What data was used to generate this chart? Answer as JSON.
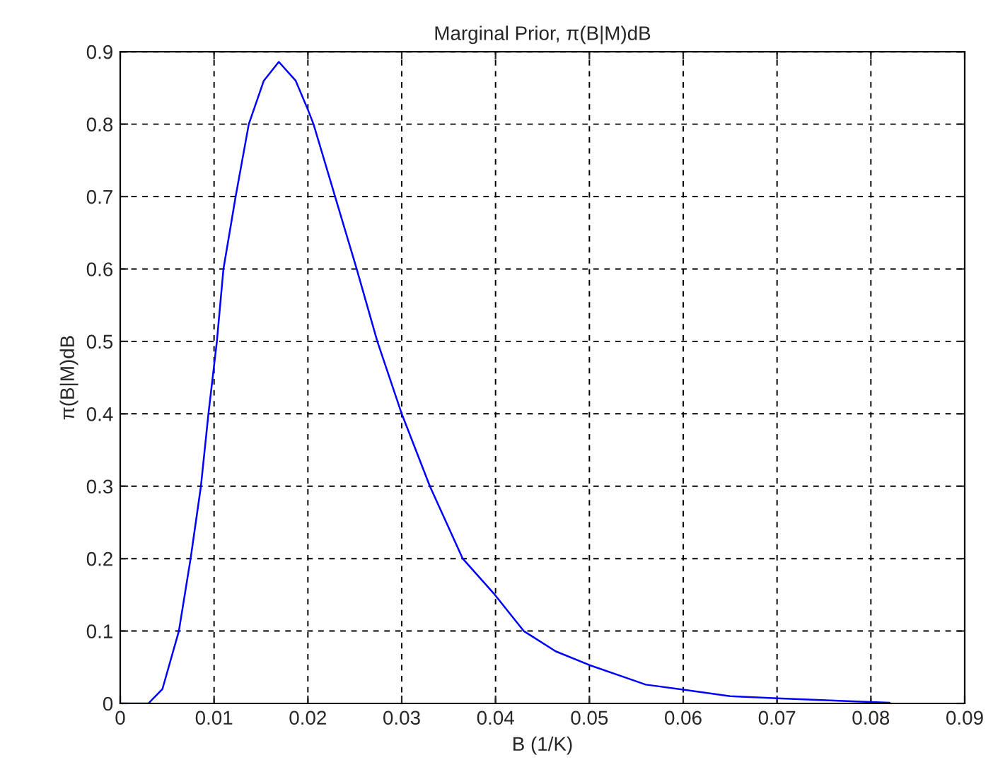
{
  "chart_data": {
    "type": "line",
    "title": "Marginal Prior, π(B|M)dB",
    "xlabel": "B (1/K)",
    "ylabel": "π(B|M)dB",
    "xlim": [
      0,
      0.09
    ],
    "xticks": [
      0,
      0.01,
      0.02,
      0.03,
      0.04,
      0.05,
      0.06,
      0.07,
      0.08,
      0.09
    ],
    "ylim": [
      0,
      0.9
    ],
    "yticks": [
      0,
      0.1,
      0.2,
      0.3,
      0.4,
      0.5,
      0.6,
      0.7,
      0.8,
      0.9
    ],
    "grid": true,
    "line_style": "solid",
    "marker": "none",
    "series": [
      {
        "color": "#0000ff",
        "x": [
          0,
          0.003,
          0.0045,
          0.00625,
          0.0075,
          0.0086,
          0.0094,
          0.0103,
          0.011,
          0.0123,
          0.0137,
          0.0153,
          0.0169,
          0.0187,
          0.02,
          0.0206,
          0.0229,
          0.0252,
          0.0274,
          0.03,
          0.033,
          0.0365,
          0.0398,
          0.043,
          0.0464,
          0.05,
          0.054,
          0.056,
          0.06,
          0.065,
          0.07,
          0.078,
          0.082
        ],
        "values": [
          0,
          0,
          0.02,
          0.1,
          0.2,
          0.3,
          0.4,
          0.5,
          0.6,
          0.7,
          0.8,
          0.86,
          0.886,
          0.86,
          0.82,
          0.8,
          0.7,
          0.6,
          0.5,
          0.4,
          0.3,
          0.2,
          0.152,
          0.1,
          0.072,
          0.053,
          0.035,
          0.026,
          0.019,
          0.01,
          0.007,
          0.003,
          0.001
        ]
      }
    ]
  }
}
